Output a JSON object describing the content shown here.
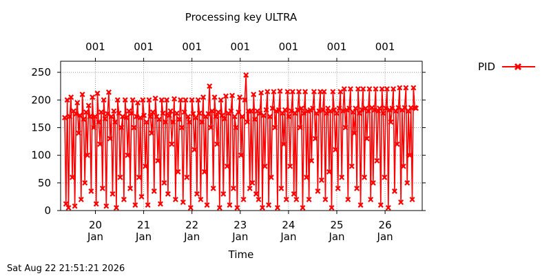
{
  "chart_data": {
    "type": "line",
    "title": "Processing key ULTRA",
    "xlabel": "Time",
    "ylabel": "",
    "ylim": [
      0,
      270
    ],
    "y_ticks": [
      0,
      50,
      100,
      150,
      200,
      250
    ],
    "xlim_days": [
      19.4,
      20.8
    ],
    "x_ticks": [
      {
        "day": "20",
        "month": "Jan"
      },
      {
        "day": "21",
        "month": "Jan"
      },
      {
        "day": "22",
        "month": "Jan"
      },
      {
        "day": "23",
        "month": "Jan"
      },
      {
        "day": "24",
        "month": "Jan"
      },
      {
        "day": "25",
        "month": "Jan"
      },
      {
        "day": "26",
        "month": "Jan"
      }
    ],
    "top_ticks": [
      "001",
      "001",
      "001",
      "001",
      "001",
      "001",
      "001"
    ],
    "grid": true,
    "legend_position": "top-right",
    "series": [
      {
        "name": "PID",
        "color": "#ff0000",
        "marker": "x",
        "x_start": "19 Jan 2026",
        "x_end": "26 Jan 2026",
        "values": [
          168,
          12,
          200,
          5,
          170,
          205,
          60,
          180,
          8,
          175,
          195,
          140,
          172,
          20,
          210,
          165,
          50,
          178,
          100,
          190,
          170,
          35,
          205,
          150,
          170,
          12,
          212,
          160,
          120,
          178,
          40,
          200,
          166,
          8,
          175,
          214,
          130,
          170,
          30,
          180,
          160,
          5,
          200,
          176,
          60,
          150,
          170,
          20,
          200,
          168,
          100,
          180,
          40,
          176,
          200,
          150,
          10,
          170,
          195,
          60,
          168,
          25,
          200,
          172,
          80,
          160,
          10,
          200,
          170,
          140,
          178,
          35,
          203,
          170,
          90,
          165,
          12,
          200,
          176,
          50,
          160,
          200,
          30,
          172,
          180,
          120,
          160,
          202,
          20,
          176,
          70,
          165,
          200,
          150,
          15,
          178,
          200,
          60,
          170,
          160,
          5,
          200,
          175,
          110,
          168,
          30,
          200,
          176,
          20,
          160,
          205,
          70,
          170,
          10,
          175,
          225,
          150,
          180,
          40,
          205,
          170,
          120,
          178,
          5,
          200,
          172,
          30,
          166,
          207,
          80,
          176,
          10,
          180,
          208,
          40,
          170,
          150,
          5,
          178,
          205,
          100,
          170,
          20,
          200,
          245,
          160,
          180,
          40,
          180,
          50,
          210,
          165,
          30,
          180,
          20,
          176,
          213,
          5,
          172,
          80,
          182,
          215,
          10,
          170,
          60,
          185,
          215,
          150,
          180,
          5,
          182,
          216,
          40,
          176,
          120,
          182,
          20,
          215,
          170,
          80,
          180,
          215,
          30,
          176,
          20,
          182,
          215,
          150,
          185,
          5,
          176,
          215,
          60,
          180,
          20,
          182,
          90,
          185,
          215,
          130,
          176,
          35,
          180,
          215,
          55,
          182,
          215,
          20,
          176,
          185,
          70,
          180,
          5,
          215,
          182,
          110,
          176,
          40,
          185,
          215,
          60,
          180,
          220,
          150,
          182,
          20,
          185,
          220,
          80,
          178,
          140,
          185,
          40,
          220,
          176,
          10,
          182,
          220,
          60,
          185,
          130,
          180,
          220,
          20,
          186,
          50,
          182,
          220,
          90,
          180,
          185,
          10,
          220,
          176,
          60,
          185,
          220,
          5,
          182,
          160,
          185,
          220,
          35,
          180,
          120,
          186,
          222,
          15,
          182,
          80,
          186,
          222,
          50,
          180,
          100,
          186,
          20,
          222,
          186,
          185
        ]
      }
    ]
  },
  "footer": {
    "timestamp": "Sat Aug 22 21:51:21 2026"
  }
}
